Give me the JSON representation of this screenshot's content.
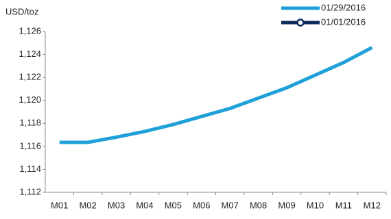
{
  "chart_data": {
    "type": "line",
    "y_label": "USD/toz",
    "categories": [
      "M01",
      "M02",
      "M03",
      "M04",
      "M05",
      "M06",
      "M07",
      "M08",
      "M09",
      "M10",
      "M11",
      "M12"
    ],
    "series": [
      {
        "name": "01/29/2016",
        "color": "#1fa0d8",
        "values": [
          1116.35,
          1116.35,
          1116.8,
          1117.3,
          1117.9,
          1118.6,
          1119.3,
          1120.2,
          1121.1,
          1122.2,
          1123.3,
          1124.6
        ]
      },
      {
        "name": "01/01/2016",
        "color": "#0d2b5c",
        "values": [
          null,
          null,
          null,
          null,
          null,
          null,
          null,
          null,
          null,
          null,
          null,
          null
        ]
      }
    ],
    "ylim": [
      1112,
      1126
    ],
    "yticks": [
      {
        "value": 1112,
        "label": "1,112"
      },
      {
        "value": 1114,
        "label": "1,114"
      },
      {
        "value": 1116,
        "label": "1,116"
      },
      {
        "value": 1118,
        "label": "1,118"
      },
      {
        "value": 1120,
        "label": "1,120"
      },
      {
        "value": 1122,
        "label": "1,122"
      },
      {
        "value": 1124,
        "label": "1,124"
      },
      {
        "value": 1126,
        "label": "1,126"
      }
    ],
    "grid": false
  }
}
